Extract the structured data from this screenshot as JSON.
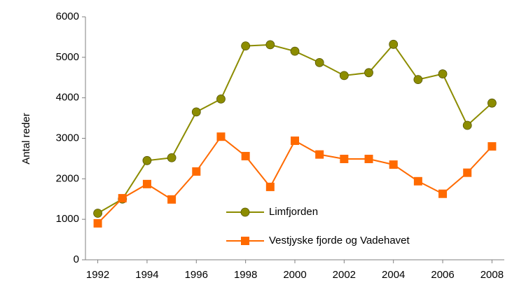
{
  "chart_data": {
    "type": "line",
    "y_label": "Antal reder",
    "x": [
      1992,
      1993,
      1994,
      1995,
      1996,
      1997,
      1998,
      1999,
      2000,
      2001,
      2002,
      2003,
      2004,
      2005,
      2006,
      2007,
      2008
    ],
    "series": [
      {
        "name": "Limfjorden",
        "color": "#8c8c00",
        "marker": "circle",
        "values": [
          1150,
          1500,
          2450,
          2520,
          3650,
          3970,
          5280,
          5310,
          5150,
          4870,
          4550,
          4620,
          5320,
          4450,
          4590,
          3320,
          3870
        ]
      },
      {
        "name": "Vestjyske fjorde og Vadehavet",
        "color": "#ff6a00",
        "marker": "square",
        "values": [
          900,
          1520,
          1870,
          1490,
          2180,
          3040,
          2560,
          1800,
          2940,
          2600,
          2490,
          2490,
          2350,
          1940,
          1630,
          2150,
          2800
        ]
      }
    ],
    "xlim": [
      1991.5,
      2008.5
    ],
    "xticks": [
      1992,
      1994,
      1996,
      1998,
      2000,
      2002,
      2004,
      2006,
      2008
    ],
    "ylim": [
      0,
      6000
    ],
    "yticks": [
      0,
      1000,
      2000,
      3000,
      4000,
      5000,
      6000
    ],
    "grid": false,
    "legend": "lower-center"
  }
}
